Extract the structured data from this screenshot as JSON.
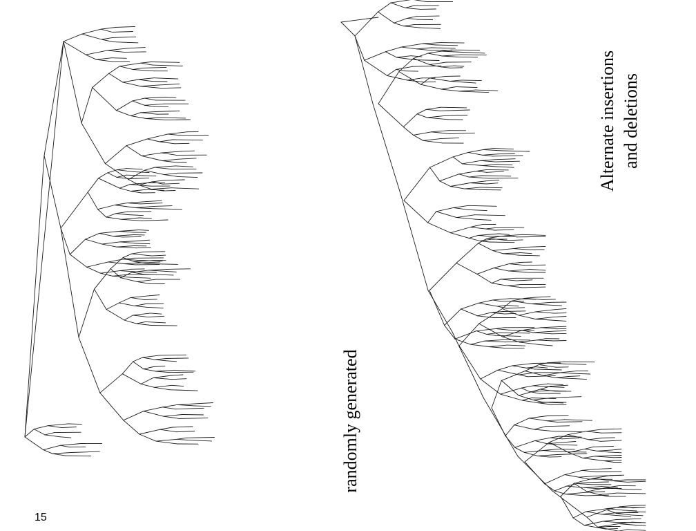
{
  "slide": {
    "page_number": "15"
  },
  "left_tree": {
    "caption": "randomly generated"
  },
  "right_tree": {
    "caption_line1": "Alternate insertions",
    "caption_line2": "and deletions"
  },
  "style": {
    "line_color": "#1a1a1a",
    "background": "#ffffff"
  }
}
